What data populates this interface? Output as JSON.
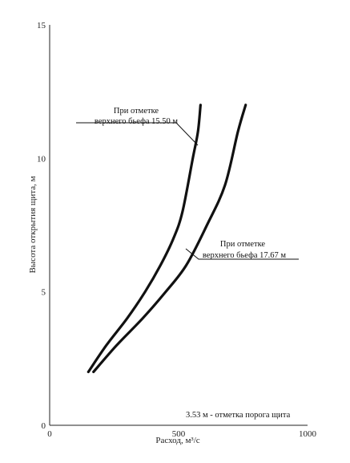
{
  "chart_data": {
    "type": "line",
    "title": "",
    "xlabel": "Расход, м³/с",
    "ylabel": "Высота открытия щита, м",
    "xlim": [
      0,
      1000
    ],
    "ylim": [
      0,
      15
    ],
    "xticks": [
      0,
      500,
      1000
    ],
    "yticks": [
      0,
      5,
      10,
      15
    ],
    "grid": false,
    "series": [
      {
        "name": "При отметке верхнего бьефа 15.50 м",
        "x": [
          150,
          220,
          300,
          370,
          430,
          480,
          515,
          555,
          575,
          585
        ],
        "y": [
          2.0,
          3.0,
          4.0,
          5.0,
          6.0,
          7.0,
          8.0,
          10.0,
          11.0,
          12.0
        ]
      },
      {
        "name": "При отметке верхнего бьефа 17.67 м",
        "x": [
          170,
          260,
          360,
          450,
          530,
          610,
          680,
          730,
          760
        ],
        "y": [
          2.0,
          3.0,
          4.0,
          5.0,
          6.0,
          7.5,
          9.0,
          11.0,
          12.0
        ]
      }
    ],
    "annotations": [
      {
        "lines": [
          "При отметке",
          "верхнего бьефа 15.50 м"
        ]
      },
      {
        "lines": [
          "При отметке",
          "верхнего бьефа 17.67 м"
        ]
      },
      {
        "text": "3.53   м - отметка порога щита"
      }
    ]
  }
}
